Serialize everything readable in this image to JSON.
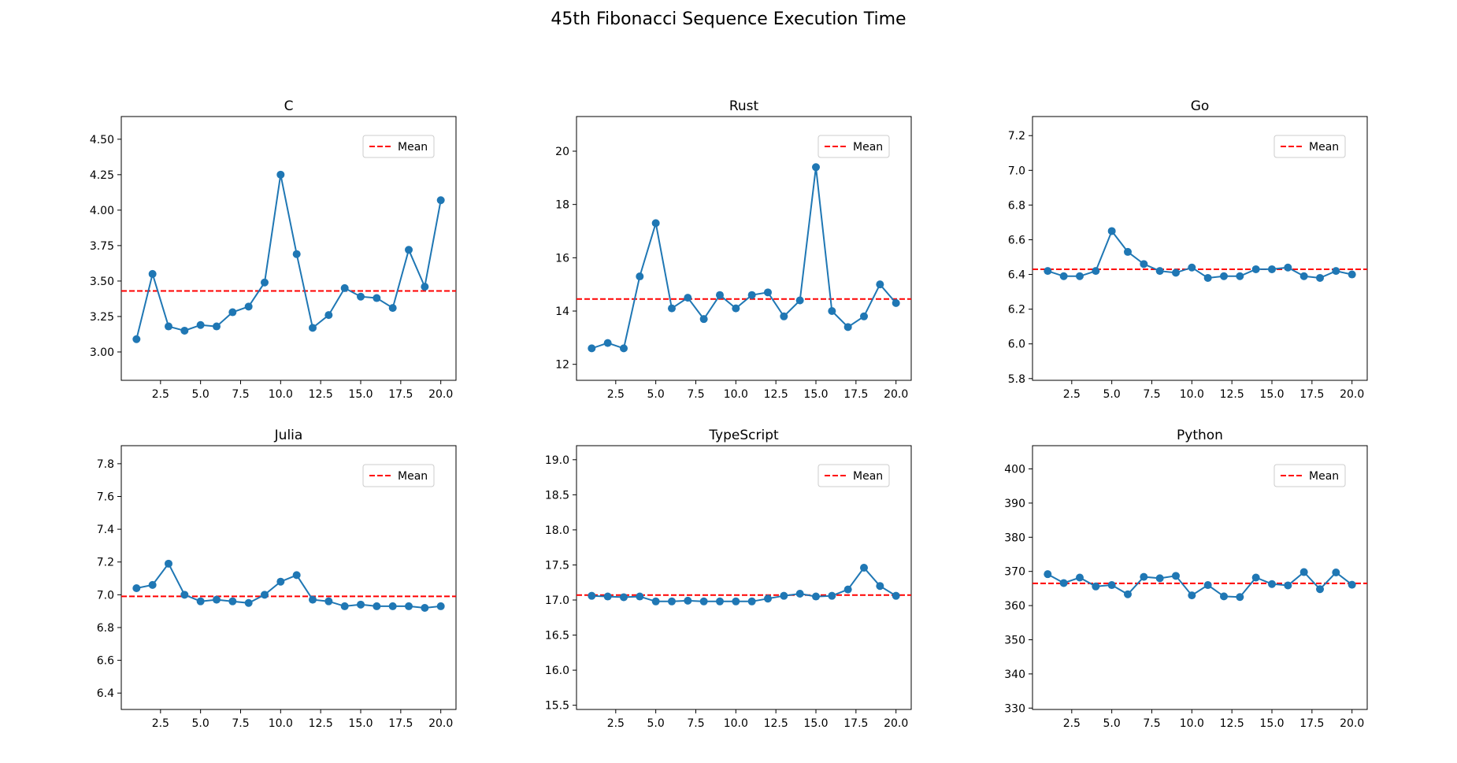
{
  "figure": {
    "title": "45th Fibonacci Sequence Execution Time"
  },
  "colors": {
    "series": "#1f77b4",
    "mean": "#ff0000",
    "axes": "#000000"
  },
  "chart_data": [
    {
      "type": "line",
      "title": "C",
      "x": [
        1,
        2,
        3,
        4,
        5,
        6,
        7,
        8,
        9,
        10,
        11,
        12,
        13,
        14,
        15,
        16,
        17,
        18,
        19,
        20
      ],
      "series": [
        {
          "values": [
            3.09,
            3.55,
            3.18,
            3.15,
            3.19,
            3.18,
            3.28,
            3.32,
            3.49,
            4.25,
            3.69,
            3.17,
            3.26,
            3.45,
            3.39,
            3.38,
            3.31,
            3.72,
            3.46,
            4.07
          ]
        }
      ],
      "mean": {
        "label": "Mean",
        "value": 3.43
      },
      "xlim": [
        0.05,
        20.95
      ],
      "ylim": [
        2.8,
        4.66
      ],
      "xticks": [
        2.5,
        5.0,
        7.5,
        10.0,
        12.5,
        15.0,
        17.5,
        20.0
      ],
      "xtick_labels": [
        "2.5",
        "5.0",
        "7.5",
        "10.0",
        "12.5",
        "15.0",
        "17.5",
        "20.0"
      ],
      "yticks": [
        3.0,
        3.25,
        3.5,
        3.75,
        4.0,
        4.25,
        4.5
      ],
      "ytick_labels": [
        "3.00",
        "3.25",
        "3.50",
        "3.75",
        "4.00",
        "4.25",
        "4.50"
      ],
      "legend": "upper right"
    },
    {
      "type": "line",
      "title": "Rust",
      "x": [
        1,
        2,
        3,
        4,
        5,
        6,
        7,
        8,
        9,
        10,
        11,
        12,
        13,
        14,
        15,
        16,
        17,
        18,
        19,
        20
      ],
      "series": [
        {
          "values": [
            12.6,
            12.8,
            12.6,
            15.3,
            17.3,
            14.1,
            14.5,
            13.7,
            14.6,
            14.1,
            14.6,
            14.7,
            13.8,
            14.4,
            19.4,
            14.0,
            13.4,
            13.8,
            15.0,
            14.3
          ]
        }
      ],
      "mean": {
        "label": "Mean",
        "value": 14.45
      },
      "xlim": [
        0.05,
        20.95
      ],
      "ylim": [
        11.4,
        21.3
      ],
      "xticks": [
        2.5,
        5.0,
        7.5,
        10.0,
        12.5,
        15.0,
        17.5,
        20.0
      ],
      "xtick_labels": [
        "2.5",
        "5.0",
        "7.5",
        "10.0",
        "12.5",
        "15.0",
        "17.5",
        "20.0"
      ],
      "yticks": [
        12,
        14,
        16,
        18,
        20
      ],
      "ytick_labels": [
        "12",
        "14",
        "16",
        "18",
        "20"
      ],
      "legend": "upper right"
    },
    {
      "type": "line",
      "title": "Go",
      "x": [
        1,
        2,
        3,
        4,
        5,
        6,
        7,
        8,
        9,
        10,
        11,
        12,
        13,
        14,
        15,
        16,
        17,
        18,
        19,
        20
      ],
      "series": [
        {
          "values": [
            6.42,
            6.39,
            6.39,
            6.42,
            6.65,
            6.53,
            6.46,
            6.42,
            6.41,
            6.44,
            6.38,
            6.39,
            6.39,
            6.43,
            6.43,
            6.44,
            6.39,
            6.38,
            6.42,
            6.4
          ]
        }
      ],
      "mean": {
        "label": "Mean",
        "value": 6.43
      },
      "xlim": [
        0.05,
        20.95
      ],
      "ylim": [
        5.79,
        7.31
      ],
      "xticks": [
        2.5,
        5.0,
        7.5,
        10.0,
        12.5,
        15.0,
        17.5,
        20.0
      ],
      "xtick_labels": [
        "2.5",
        "5.0",
        "7.5",
        "10.0",
        "12.5",
        "15.0",
        "17.5",
        "20.0"
      ],
      "yticks": [
        5.8,
        6.0,
        6.2,
        6.4,
        6.6,
        6.8,
        7.0,
        7.2
      ],
      "ytick_labels": [
        "5.8",
        "6.0",
        "6.2",
        "6.4",
        "6.6",
        "6.8",
        "7.0",
        "7.2"
      ],
      "legend": "upper right"
    },
    {
      "type": "line",
      "title": "Julia",
      "x": [
        1,
        2,
        3,
        4,
        5,
        6,
        7,
        8,
        9,
        10,
        11,
        12,
        13,
        14,
        15,
        16,
        17,
        18,
        19,
        20
      ],
      "series": [
        {
          "values": [
            7.04,
            7.06,
            7.19,
            7.0,
            6.96,
            6.97,
            6.96,
            6.95,
            7.0,
            7.08,
            7.12,
            6.97,
            6.96,
            6.93,
            6.94,
            6.93,
            6.93,
            6.93,
            6.92,
            6.93
          ]
        }
      ],
      "mean": {
        "label": "Mean",
        "value": 6.99
      },
      "xlim": [
        0.05,
        20.95
      ],
      "ylim": [
        6.3,
        7.91
      ],
      "xticks": [
        2.5,
        5.0,
        7.5,
        10.0,
        12.5,
        15.0,
        17.5,
        20.0
      ],
      "xtick_labels": [
        "2.5",
        "5.0",
        "7.5",
        "10.0",
        "12.5",
        "15.0",
        "17.5",
        "20.0"
      ],
      "yticks": [
        6.4,
        6.6,
        6.8,
        7.0,
        7.2,
        7.4,
        7.6,
        7.8
      ],
      "ytick_labels": [
        "6.4",
        "6.6",
        "6.8",
        "7.0",
        "7.2",
        "7.4",
        "7.6",
        "7.8"
      ],
      "legend": "upper right"
    },
    {
      "type": "line",
      "title": "TypeScript",
      "x": [
        1,
        2,
        3,
        4,
        5,
        6,
        7,
        8,
        9,
        10,
        11,
        12,
        13,
        14,
        15,
        16,
        17,
        18,
        19,
        20
      ],
      "series": [
        {
          "values": [
            17.06,
            17.05,
            17.04,
            17.05,
            16.98,
            16.98,
            16.99,
            16.98,
            16.98,
            16.98,
            16.98,
            17.02,
            17.06,
            17.09,
            17.05,
            17.06,
            17.15,
            17.46,
            17.2,
            17.06
          ]
        }
      ],
      "mean": {
        "label": "Mean",
        "value": 17.07
      },
      "xlim": [
        0.05,
        20.95
      ],
      "ylim": [
        15.44,
        19.2
      ],
      "xticks": [
        2.5,
        5.0,
        7.5,
        10.0,
        12.5,
        15.0,
        17.5,
        20.0
      ],
      "xtick_labels": [
        "2.5",
        "5.0",
        "7.5",
        "10.0",
        "12.5",
        "15.0",
        "17.5",
        "20.0"
      ],
      "yticks": [
        15.5,
        16.0,
        16.5,
        17.0,
        17.5,
        18.0,
        18.5,
        19.0
      ],
      "ytick_labels": [
        "15.5",
        "16.0",
        "16.5",
        "17.0",
        "17.5",
        "18.0",
        "18.5",
        "19.0"
      ],
      "legend": "upper right"
    },
    {
      "type": "line",
      "title": "Python",
      "x": [
        1,
        2,
        3,
        4,
        5,
        6,
        7,
        8,
        9,
        10,
        11,
        12,
        13,
        14,
        15,
        16,
        17,
        18,
        19,
        20
      ],
      "series": [
        {
          "values": [
            369.2,
            366.6,
            368.2,
            365.6,
            366.0,
            363.3,
            368.4,
            368.0,
            368.7,
            363.0,
            366.0,
            362.7,
            362.5,
            368.2,
            366.3,
            365.9,
            369.8,
            364.8,
            369.7,
            366.1
          ]
        }
      ],
      "mean": {
        "label": "Mean",
        "value": 366.5
      },
      "xlim": [
        0.05,
        20.95
      ],
      "ylim": [
        329.6,
        406.8
      ],
      "xticks": [
        2.5,
        5.0,
        7.5,
        10.0,
        12.5,
        15.0,
        17.5,
        20.0
      ],
      "xtick_labels": [
        "2.5",
        "5.0",
        "7.5",
        "10.0",
        "12.5",
        "15.0",
        "17.5",
        "20.0"
      ],
      "yticks": [
        330,
        340,
        350,
        360,
        370,
        380,
        390,
        400
      ],
      "ytick_labels": [
        "330",
        "340",
        "350",
        "360",
        "370",
        "380",
        "390",
        "400"
      ],
      "legend": "upper right"
    }
  ]
}
